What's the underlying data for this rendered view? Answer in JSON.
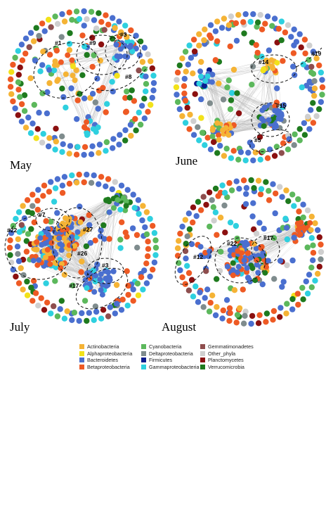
{
  "panels": [
    {
      "month": "May",
      "clusters": [
        "#1",
        "#9",
        "#3",
        "#8"
      ]
    },
    {
      "month": "June",
      "clusters": [
        "#14",
        "#19",
        "#15",
        "#5"
      ]
    },
    {
      "month": "July",
      "clusters": [
        "#7",
        "#22",
        "#27",
        "#26",
        "#3",
        "#17"
      ]
    },
    {
      "month": "August",
      "clusters": [
        "#22",
        "#17",
        "#12"
      ]
    }
  ],
  "legend": {
    "columns": [
      [
        {
          "name": "Actinobacteria",
          "color": "#f5b335"
        },
        {
          "name": "Alphaproteobacteria",
          "color": "#f2e21a"
        },
        {
          "name": "Bacteroidetes",
          "color": "#4a6fcf"
        },
        {
          "name": "Betaproteobacteria",
          "color": "#ee5a24"
        }
      ],
      [
        {
          "name": "Cyanobacteria",
          "color": "#5cb85c"
        },
        {
          "name": "Deltaproteobacteria",
          "color": "#7f8c8d"
        },
        {
          "name": "Firmicutes",
          "color": "#0b1d8f"
        },
        {
          "name": "Gammaproteobacteria",
          "color": "#2ed0df"
        }
      ],
      [
        {
          "name": "Gemmatimonadetes",
          "color": "#8e4e4e"
        },
        {
          "name": "Other_phyla",
          "color": "#cfcfcf"
        },
        {
          "name": "Planctomycetes",
          "color": "#8b1010"
        },
        {
          "name": "Verrucomicrobia",
          "color": "#1e7a1e"
        }
      ]
    ]
  }
}
